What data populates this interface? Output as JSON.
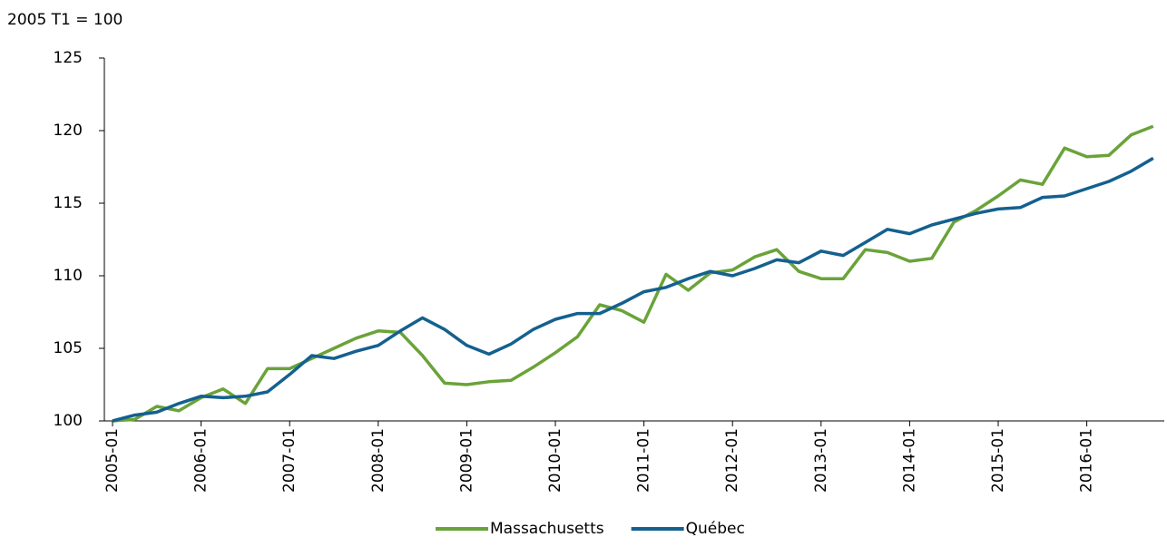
{
  "chart_data": {
    "type": "line",
    "y_axis_label": "2005 T1 = 100",
    "categories": [
      "2005-01",
      null,
      null,
      null,
      "2006-01",
      null,
      null,
      null,
      "2007-01",
      null,
      null,
      null,
      "2008-01",
      null,
      null,
      null,
      "2009-01",
      null,
      null,
      null,
      "2010-01",
      null,
      null,
      null,
      "2011-01",
      null,
      null,
      null,
      "2012-01",
      null,
      null,
      null,
      "2013-01",
      null,
      null,
      null,
      "2014-01",
      null,
      null,
      null,
      "2015-01",
      null,
      null,
      null,
      "2016-01",
      null,
      null,
      null
    ],
    "series": [
      {
        "name": "Massachusetts",
        "color": "#6aa339",
        "values": [
          100,
          100.1,
          101.0,
          100.7,
          101.6,
          102.2,
          101.2,
          103.6,
          103.6,
          104.3,
          105.0,
          105.7,
          106.2,
          106.1,
          104.5,
          102.6,
          102.5,
          102.7,
          102.8,
          103.7,
          104.7,
          105.8,
          108.0,
          107.6,
          106.8,
          110.1,
          109.0,
          110.2,
          110.4,
          111.3,
          111.8,
          110.3,
          109.8,
          109.8,
          111.8,
          111.6,
          111.0,
          111.2,
          113.7,
          114.5,
          115.5,
          116.6,
          116.3,
          118.8,
          118.2,
          118.3,
          119.7,
          120.3
        ]
      },
      {
        "name": "Québec",
        "color": "#14608f",
        "values": [
          100,
          100.4,
          100.6,
          101.2,
          101.7,
          101.6,
          101.7,
          102.0,
          103.2,
          104.5,
          104.3,
          104.8,
          105.2,
          106.2,
          107.1,
          106.3,
          105.2,
          104.6,
          105.3,
          106.3,
          107.0,
          107.4,
          107.4,
          108.1,
          108.9,
          109.2,
          109.8,
          110.3,
          110.0,
          110.5,
          111.1,
          110.9,
          111.7,
          111.4,
          112.3,
          113.2,
          112.9,
          113.5,
          113.9,
          114.3,
          114.6,
          114.7,
          115.4,
          115.5,
          116.0,
          116.5,
          117.2,
          118.1
        ]
      }
    ],
    "ylim": [
      100,
      125
    ],
    "yticks": [
      100,
      105,
      110,
      115,
      120,
      125
    ],
    "grid": false,
    "legend": "bottom"
  }
}
